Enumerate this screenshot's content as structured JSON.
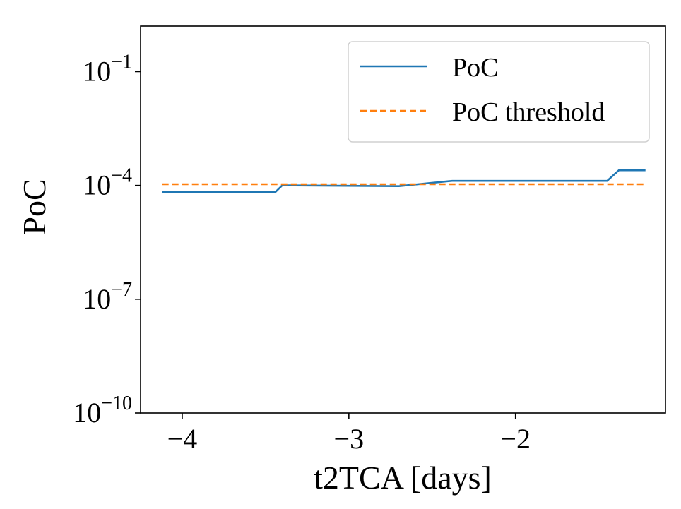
{
  "chart_data": {
    "type": "line",
    "title": "",
    "xlabel": "t2TCA [days]",
    "ylabel": "PoC",
    "yscale": "log",
    "xlim": [
      -4.25,
      -1.1
    ],
    "ylim_exponent": [
      -10,
      0.2
    ],
    "x_ticks": [
      -4,
      -3,
      -2
    ],
    "x_tick_labels": [
      "−4",
      "−3",
      "−2"
    ],
    "y_ticks_exponent": [
      -10,
      -7,
      -4,
      -1
    ],
    "y_tick_base": "10",
    "y_tick_exponent_labels": [
      "−10",
      "−7",
      "−4",
      "−1"
    ],
    "grid": false,
    "legend_position": "top-right",
    "series": [
      {
        "name": "PoC",
        "color": "#1f77b4",
        "style": "solid",
        "x": [
          -4.12,
          -3.44,
          -3.4,
          -2.7,
          -2.38,
          -1.45,
          -1.38,
          -1.22
        ],
        "y_exponent": [
          -4.17,
          -4.17,
          -4.0,
          -4.02,
          -3.88,
          -3.88,
          -3.6,
          -3.6
        ]
      },
      {
        "name": "PoC threshold",
        "color": "#ff7f0e",
        "style": "dashed",
        "x": [
          -4.12,
          -1.22
        ],
        "y_exponent": [
          -3.97,
          -3.97
        ]
      }
    ]
  }
}
